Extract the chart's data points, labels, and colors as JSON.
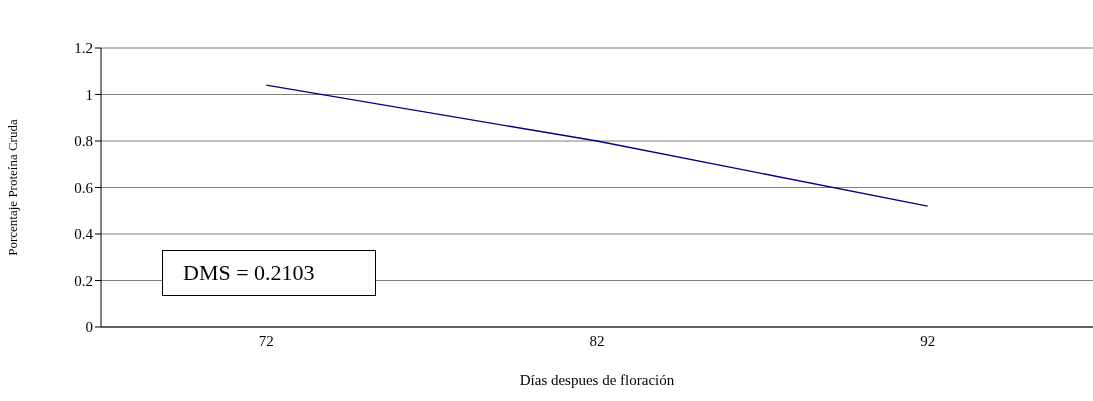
{
  "chart_data": {
    "type": "line",
    "xlabel": "Días despues de floración",
    "ylabel": "Porcentaje Proteína Cruda",
    "categories": [
      "72",
      "82",
      "92"
    ],
    "series": [
      {
        "color": "#000080",
        "values": [
          1.04,
          0.8,
          0.52
        ]
      }
    ],
    "ylim": [
      0,
      1.2
    ],
    "yticks": [
      0,
      0.2,
      0.4,
      0.6,
      0.8,
      1,
      1.2
    ],
    "grid": "y",
    "marker": "none",
    "line_style": "solid",
    "annotations": [
      "DMS = 0.2103"
    ]
  }
}
